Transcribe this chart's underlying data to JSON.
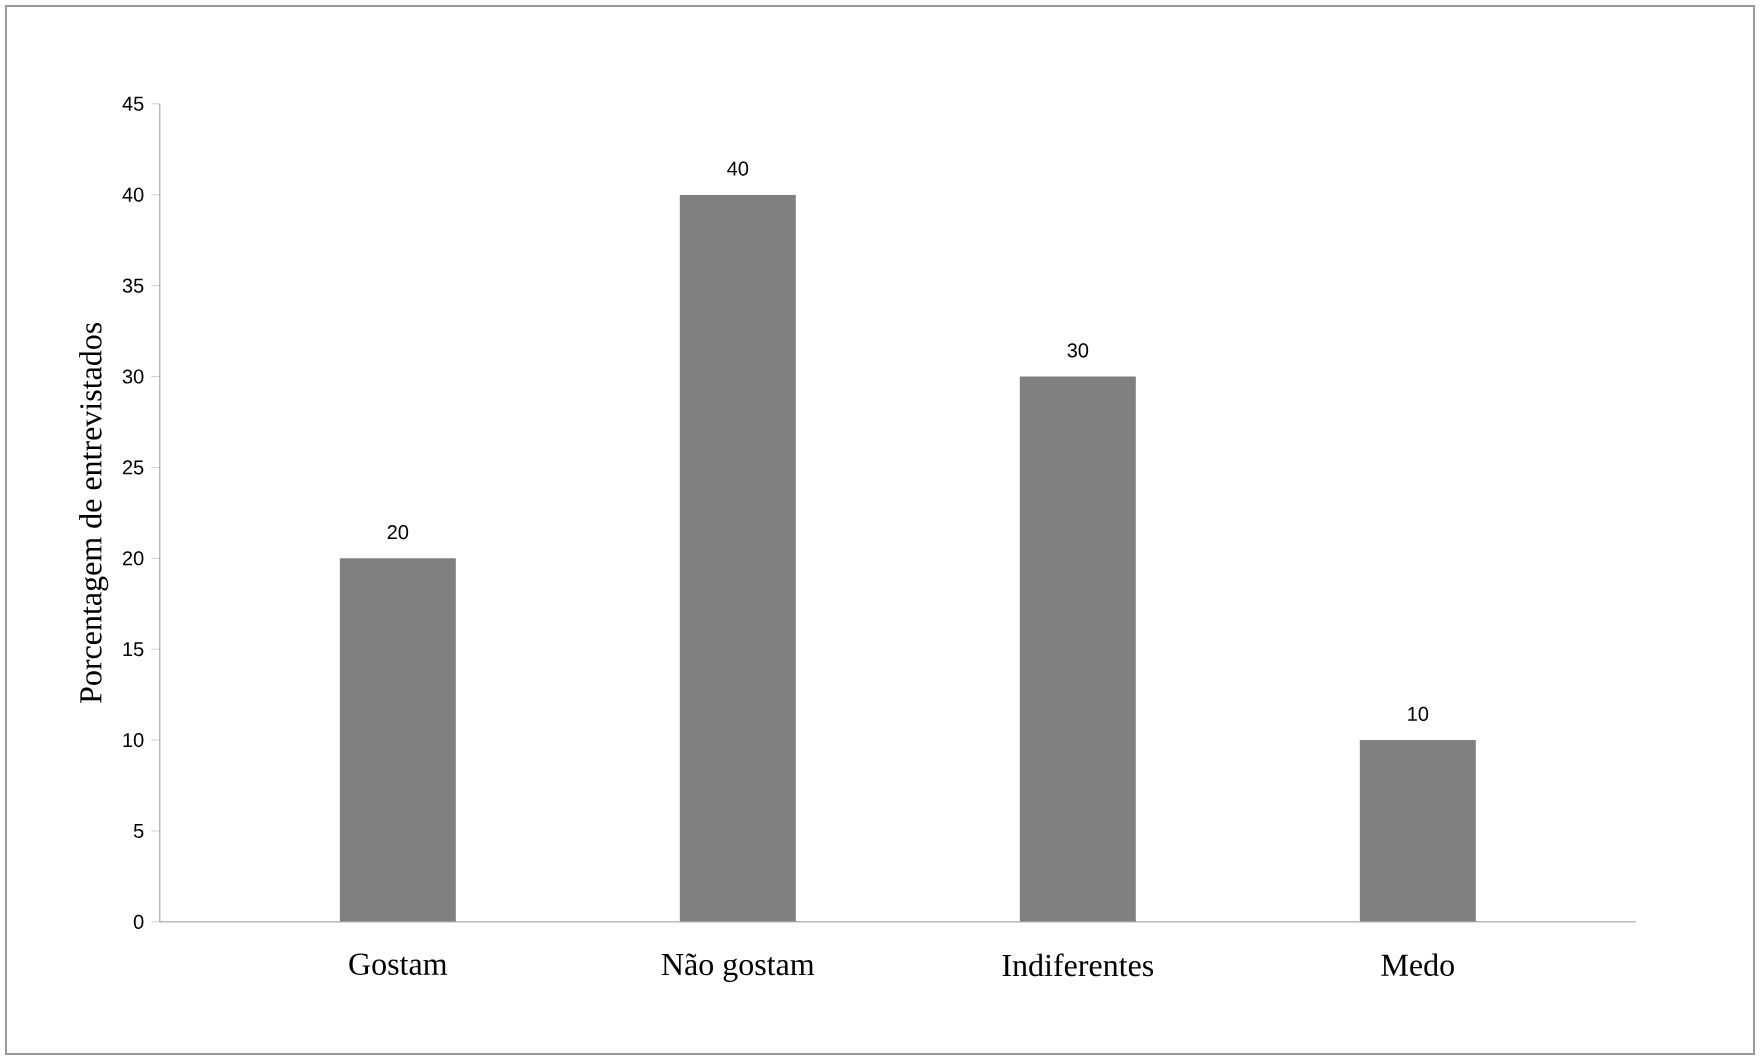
{
  "chart_data": {
    "type": "bar",
    "ylabel": "Porcentagem de entrevistados",
    "categories": [
      "Gostam",
      "Não gostam",
      "Indiferentes",
      "Medo"
    ],
    "values": [
      20,
      40,
      30,
      10
    ],
    "color": "#808080",
    "ylim": [
      0,
      45
    ],
    "yticks": [
      0,
      5,
      10,
      15,
      20,
      25,
      30,
      35,
      40,
      45
    ],
    "data_labels": true
  }
}
